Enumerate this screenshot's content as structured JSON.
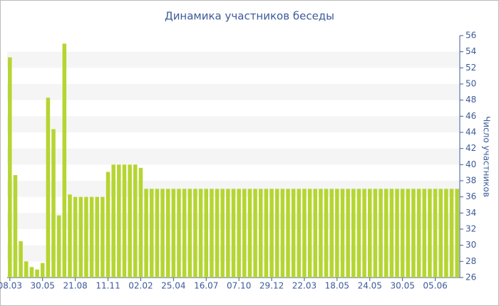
{
  "chart_data": {
    "type": "bar",
    "title": "Динамика участников беседы",
    "y_axis_label": "Число участников",
    "categories": [
      "08.03",
      null,
      null,
      null,
      null,
      null,
      "30.05",
      null,
      null,
      null,
      null,
      null,
      "21.08",
      null,
      null,
      null,
      null,
      null,
      "11.11",
      null,
      null,
      null,
      null,
      null,
      "02.02",
      null,
      null,
      null,
      null,
      null,
      "25.04",
      null,
      null,
      null,
      null,
      null,
      "16.07",
      null,
      null,
      null,
      null,
      null,
      "07.10",
      null,
      null,
      null,
      null,
      null,
      "29.12",
      null,
      null,
      null,
      null,
      null,
      "22.03",
      null,
      null,
      null,
      null,
      null,
      "18.05",
      null,
      null,
      null,
      null,
      null,
      "24.05",
      null,
      null,
      null,
      null,
      null,
      "30.05",
      null,
      null,
      null,
      null,
      null,
      "05.06",
      null,
      null,
      null,
      null
    ],
    "values": [
      53.3,
      38.7,
      30.5,
      28,
      27.3,
      27,
      27.8,
      48.3,
      44.4,
      33.7,
      55,
      36.3,
      36,
      36,
      36,
      36,
      36,
      36,
      39.1,
      40,
      40,
      40,
      40,
      40,
      39.6,
      37,
      37,
      37,
      37,
      37,
      37,
      37,
      37,
      37,
      37,
      37,
      37,
      37,
      37,
      37,
      37,
      37,
      37,
      37,
      37,
      37,
      37,
      37,
      37,
      37,
      37,
      37,
      37,
      37,
      37,
      37,
      37,
      37,
      37,
      37,
      37,
      37,
      37,
      37,
      37,
      37,
      37,
      37,
      37,
      37,
      37,
      37,
      37,
      37,
      37,
      37,
      37,
      37,
      37,
      37,
      37,
      37,
      37
    ],
    "color": "#b5d531",
    "ylim": [
      26,
      56
    ],
    "yticks": [
      26,
      28,
      30,
      32,
      34,
      36,
      38,
      40,
      42,
      44,
      46,
      48,
      50,
      52,
      54,
      56
    ],
    "grid": true
  }
}
